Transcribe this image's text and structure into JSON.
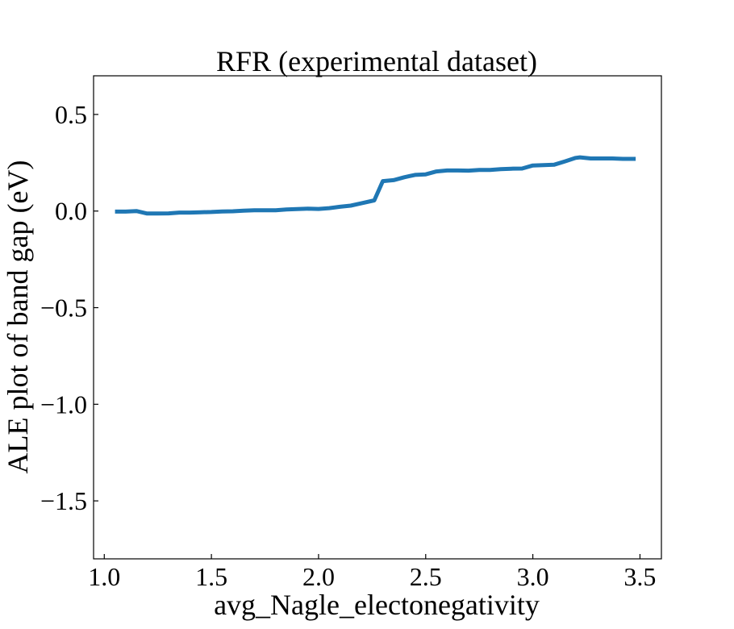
{
  "chart_data": {
    "type": "line",
    "title": "RFR (experimental dataset)",
    "xlabel": "avg_Nagle_electonegativity",
    "ylabel": "ALE plot of band gap (eV)",
    "xlim": [
      0.95,
      3.6
    ],
    "ylim": [
      -1.8,
      0.7
    ],
    "x_ticks": [
      1.0,
      1.5,
      2.0,
      2.5,
      3.0,
      3.5
    ],
    "x_tick_labels": [
      "1.0",
      "1.5",
      "2.0",
      "2.5",
      "3.0",
      "3.5"
    ],
    "y_ticks": [
      0.5,
      0.0,
      -0.5,
      -1.0,
      -1.5
    ],
    "y_tick_labels": [
      "0.5",
      "0.0",
      "−0.5",
      "−1.0",
      "−1.5"
    ],
    "grid": false,
    "series": [
      {
        "color": "#1f77b4",
        "x": [
          1.05,
          1.1,
          1.15,
          1.2,
          1.25,
          1.3,
          1.35,
          1.4,
          1.45,
          1.5,
          1.55,
          1.6,
          1.65,
          1.7,
          1.75,
          1.8,
          1.85,
          1.9,
          1.95,
          2.0,
          2.05,
          2.1,
          2.15,
          2.2,
          2.26,
          2.3,
          2.35,
          2.4,
          2.45,
          2.5,
          2.55,
          2.6,
          2.65,
          2.7,
          2.75,
          2.8,
          2.85,
          2.9,
          2.95,
          3.0,
          3.05,
          3.1,
          3.15,
          3.2,
          3.22,
          3.27,
          3.32,
          3.37,
          3.42,
          3.48
        ],
        "y": [
          -0.003,
          -0.003,
          0.0,
          -0.013,
          -0.013,
          -0.012,
          -0.008,
          -0.008,
          -0.006,
          -0.005,
          -0.002,
          -0.001,
          0.002,
          0.004,
          0.004,
          0.004,
          0.008,
          0.01,
          0.012,
          0.011,
          0.015,
          0.022,
          0.028,
          0.04,
          0.055,
          0.155,
          0.16,
          0.175,
          0.187,
          0.19,
          0.205,
          0.21,
          0.21,
          0.209,
          0.213,
          0.213,
          0.217,
          0.219,
          0.22,
          0.236,
          0.238,
          0.24,
          0.257,
          0.275,
          0.278,
          0.272,
          0.272,
          0.272,
          0.27,
          0.27
        ]
      }
    ]
  }
}
